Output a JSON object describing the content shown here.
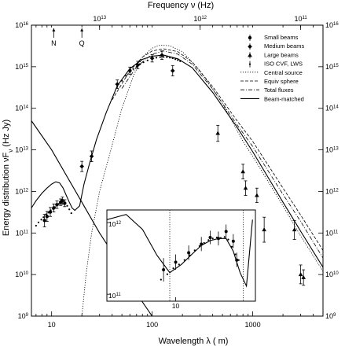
{
  "chart_data": {
    "type": "scatter",
    "xlabel": "Wavelength λ (  m)",
    "ylabel": "Energy distribution νF",
    "ylabel_sub": "ν",
    "ylabel_unit": " (Hz Jy)",
    "top_axis_label": "Frequency ν (Hz)",
    "x_scale": "log",
    "y_scale": "log",
    "xlim": [
      6.3,
      5000
    ],
    "ylim": [
      1000000000.0,
      1e+16
    ],
    "x_ticks": [
      {
        "value": 10,
        "label": "10"
      },
      {
        "value": 100,
        "label": "100"
      },
      {
        "value": 1000,
        "label": "1000"
      }
    ],
    "y_ticks": [
      {
        "value": 1000000000.0,
        "label": "10",
        "exp": "9"
      },
      {
        "value": 10000000000.0,
        "label": "10",
        "exp": "10"
      },
      {
        "value": 100000000000.0,
        "label": "10",
        "exp": "11"
      },
      {
        "value": 1000000000000.0,
        "label": "10",
        "exp": "12"
      },
      {
        "value": 10000000000000.0,
        "label": "10",
        "exp": "13"
      },
      {
        "value": 100000000000000.0,
        "label": "10",
        "exp": "14"
      },
      {
        "value": 1000000000000000.0,
        "label": "10",
        "exp": "15"
      },
      {
        "value": 1e+16,
        "label": "10",
        "exp": "16"
      }
    ],
    "top_ticks": [
      {
        "wavelength": 30,
        "label": "10",
        "exp": "13"
      },
      {
        "wavelength": 300,
        "label": "10",
        "exp": "12"
      },
      {
        "wavelength": 3000,
        "label": "10",
        "exp": "11"
      }
    ],
    "band_markers": [
      {
        "label": "N",
        "x": 10.5
      },
      {
        "label": "Q",
        "x": 20
      }
    ],
    "legend_position": "top-right",
    "legend": [
      {
        "label": "Small beams",
        "marker": "circle"
      },
      {
        "label": "Medium beams",
        "marker": "diamond"
      },
      {
        "label": "Large beams",
        "marker": "triangle"
      },
      {
        "label": "ISO CVF, LWS",
        "marker": "dot"
      },
      {
        "label": "Central source",
        "line": "dotted"
      },
      {
        "label": "Equiv sphere",
        "line": "dashed"
      },
      {
        "label": "Total fluxes",
        "line": "dashdot"
      },
      {
        "label": "Beam-matched",
        "line": "solid"
      }
    ],
    "series": [
      {
        "name": "Small beams",
        "marker": "circle",
        "points": [
          [
            8.5,
            200000000000.0,
            140000000000.0,
            280000000000.0
          ],
          [
            9.0,
            250000000000.0,
            190000000000.0,
            330000000000.0
          ],
          [
            9.7,
            320000000000.0,
            250000000000.0,
            410000000000.0
          ],
          [
            10.5,
            400000000000.0,
            320000000000.0,
            500000000000.0
          ],
          [
            11.3,
            480000000000.0,
            390000000000.0,
            590000000000.0
          ],
          [
            12.3,
            550000000000.0,
            460000000000.0,
            660000000000.0
          ],
          [
            12.8,
            600000000000.0,
            490000000000.0,
            730000000000.0
          ],
          [
            13.5,
            520000000000.0,
            430000000000.0,
            630000000000.0
          ]
        ]
      },
      {
        "name": "Medium beams",
        "marker": "diamond",
        "points": [
          [
            20,
            4000000000000.0,
            3000000000000.0,
            5300000000000.0
          ],
          [
            25,
            7000000000000.0,
            5200000000000.0,
            9400000000000.0
          ],
          [
            45,
            380000000000000.0,
            300000000000000.0,
            480000000000000.0
          ],
          [
            60,
            800000000000000.0,
            650000000000000.0,
            980000000000000.0
          ],
          [
            72,
            1100000000000000.0,
            900000000000000.0,
            1350000000000000.0
          ],
          [
            100,
            1600000000000000.0,
            1300000000000000.0,
            1950000000000000.0
          ],
          [
            125,
            1900000000000000.0,
            1500000000000000.0,
            2400000000000000.0
          ],
          [
            160,
            800000000000000.0,
            600000000000000.0,
            1070000000000000.0
          ]
        ]
      },
      {
        "name": "Large beams",
        "marker": "triangle",
        "points": [
          [
            450,
            25000000000000.0,
            16000000000000.0,
            39000000000000.0
          ],
          [
            800,
            3000000000000.0,
            2000000000000.0,
            4500000000000.0
          ],
          [
            850,
            1200000000000.0,
            800000000000.0,
            1800000000000.0
          ],
          [
            1100,
            800000000000.0,
            540000000000.0,
            1200000000000.0
          ],
          [
            1300,
            120000000000.0,
            60000000000.0,
            240000000000.0
          ],
          [
            2600,
            120000000000.0,
            70000000000.0,
            200000000000.0
          ],
          [
            3000,
            10000000000.0,
            6000000000.0,
            17000000000.0
          ],
          [
            3200,
            8500000000.0,
            5500000000.0,
            13000000000.0
          ]
        ]
      },
      {
        "name": "ISO CVF, LWS",
        "marker": "dot",
        "points": [
          [
            7.0,
            150000000000.0
          ],
          [
            7.4,
            180000000000.0
          ],
          [
            7.9,
            210000000000.0
          ],
          [
            8.3,
            240000000000.0
          ],
          [
            8.8,
            280000000000.0
          ],
          [
            9.3,
            310000000000.0
          ],
          [
            9.8,
            350000000000.0
          ],
          [
            10.3,
            380000000000.0
          ],
          [
            10.8,
            420000000000.0
          ],
          [
            11.3,
            460000000000.0
          ],
          [
            11.8,
            500000000000.0
          ],
          [
            12.4,
            560000000000.0
          ],
          [
            13.0,
            590000000000.0
          ],
          [
            13.7,
            530000000000.0
          ],
          [
            14.3,
            450000000000.0
          ],
          [
            15.0,
            370000000000.0
          ],
          [
            15.7,
            300000000000.0
          ],
          [
            45,
            330000000000000.0
          ],
          [
            50,
            460000000000000.0
          ],
          [
            55,
            600000000000000.0
          ],
          [
            60,
            740000000000000.0
          ],
          [
            65,
            880000000000000.0
          ],
          [
            70,
            1000000000000000.0
          ],
          [
            76,
            1150000000000000.0
          ],
          [
            82,
            1280000000000000.0
          ],
          [
            90,
            1420000000000000.0
          ],
          [
            100,
            1550000000000000.0
          ],
          [
            110,
            1650000000000000.0
          ],
          [
            120,
            1700000000000000.0
          ],
          [
            130,
            1720000000000000.0
          ],
          [
            140,
            1700000000000000.0
          ],
          [
            150,
            1660000000000000.0
          ],
          [
            160,
            1600000000000000.0
          ],
          [
            170,
            1520000000000000.0
          ],
          [
            180,
            1440000000000000.0
          ],
          [
            190,
            1360000000000000.0
          ]
        ]
      }
    ],
    "curves": [
      {
        "name": "Central source",
        "style": "dotted",
        "points": [
          [
            20,
            1000000000.0
          ],
          [
            22,
            10000000000.0
          ],
          [
            25,
            100000000000.0
          ],
          [
            30,
            1000000000000.0
          ],
          [
            40,
            13000000000000.0
          ],
          [
            50,
            100000000000000.0
          ],
          [
            65,
            600000000000000.0
          ],
          [
            80,
            1700000000000000.0
          ],
          [
            100,
            2800000000000000.0
          ],
          [
            120,
            3300000000000000.0
          ],
          [
            150,
            3200000000000000.0
          ],
          [
            200,
            2300000000000000.0
          ],
          [
            300,
            800000000000000.0
          ],
          [
            500,
            130000000000000.0
          ],
          [
            800,
            16000000000000.0
          ],
          [
            1000,
            7000000000000.0
          ],
          [
            2000,
            450000000000.0
          ],
          [
            3000,
            85000000000.0
          ],
          [
            5000,
            12000000000.0
          ]
        ]
      },
      {
        "name": "Equiv sphere",
        "style": "dashed",
        "points": [
          [
            40,
            160000000000000.0
          ],
          [
            60,
            800000000000000.0
          ],
          [
            80,
            1700000000000000.0
          ],
          [
            100,
            2400000000000000.0
          ],
          [
            130,
            2700000000000000.0
          ],
          [
            180,
            2300000000000000.0
          ],
          [
            250,
            1300000000000000.0
          ],
          [
            400,
            330000000000000.0
          ],
          [
            700,
            50000000000000.0
          ],
          [
            1000,
            16000000000000.0
          ],
          [
            2000,
            1200000000000.0
          ],
          [
            3000,
            270000000000.0
          ],
          [
            5000,
            38000000000.0
          ]
        ]
      },
      {
        "name": "Total fluxes",
        "style": "dashdot",
        "points": [
          [
            50,
            300000000000000.0
          ],
          [
            70,
            1000000000000000.0
          ],
          [
            100,
            2000000000000000.0
          ],
          [
            130,
            2400000000000000.0
          ],
          [
            180,
            2000000000000000.0
          ],
          [
            250,
            1150000000000000.0
          ],
          [
            400,
            290000000000000.0
          ],
          [
            700,
            40000000000000.0
          ],
          [
            1000,
            12000000000000.0
          ],
          [
            2000,
            850000000000.0
          ],
          [
            3000,
            190000000000.0
          ],
          [
            5000,
            25000000000.0
          ]
        ]
      },
      {
        "name": "Beam-matched",
        "style": "solid",
        "points": [
          [
            6.3,
            400000000000.0
          ],
          [
            7.0,
            600000000000.0
          ],
          [
            8.0,
            900000000000.0
          ],
          [
            9.0,
            1200000000000.0
          ],
          [
            10.0,
            1500000000000.0
          ],
          [
            11.0,
            1700000000000.0
          ],
          [
            12.0,
            1600000000000.0
          ],
          [
            13.0,
            1200000000000.0
          ],
          [
            14.0,
            800000000000.0
          ],
          [
            15.0,
            550000000000.0
          ],
          [
            16.0,
            400000000000.0
          ],
          [
            17.0,
            350000000000.0
          ],
          [
            19.0,
            450000000000.0
          ],
          [
            21.0,
            1500000000000.0
          ],
          [
            24.0,
            5000000000000.0
          ],
          [
            28.0,
            18000000000000.0
          ],
          [
            35.0,
            80000000000000.0
          ],
          [
            45.0,
            350000000000000.0
          ],
          [
            60.0,
            900000000000000.0
          ],
          [
            80.0,
            1500000000000000.0
          ],
          [
            100,
            1800000000000000.0
          ],
          [
            130,
            1900000000000000.0
          ],
          [
            180,
            1550000000000000.0
          ],
          [
            250,
            950000000000000.0
          ],
          [
            400,
            240000000000000.0
          ],
          [
            700,
            35000000000000.0
          ],
          [
            1000,
            9000000000000.0
          ],
          [
            2000,
            550000000000.0
          ],
          [
            3000,
            110000000000.0
          ],
          [
            5000,
            15000000000.0
          ]
        ]
      },
      {
        "name": "Beam-matched (lower)",
        "style": "solid",
        "points": [
          [
            6.3,
            50000000000000.0
          ],
          [
            10,
            10000000000000.0
          ],
          [
            20,
            550000000000.0
          ],
          [
            30,
            100000000000.0
          ],
          [
            50,
            15000000000.0
          ],
          [
            70,
            3500000000.0
          ],
          [
            100,
            1000000000.0
          ]
        ]
      }
    ],
    "inset": {
      "xlim": [
        5.5,
        20
      ],
      "ylim": [
        80000000000.0,
        1500000000000.0
      ],
      "x_ticks": [
        {
          "value": 10,
          "label": "10"
        }
      ],
      "y_ticks": [
        {
          "value": 100000000000.0,
          "label": "10",
          "exp": "11"
        },
        {
          "value": 1000000000000.0,
          "label": "10",
          "exp": "12"
        }
      ],
      "vlines": [
        9.5,
        18
      ],
      "points": [
        [
          9.0,
          220000000000.0,
          150000000000.0,
          320000000000.0
        ],
        [
          10.0,
          280000000000.0,
          220000000000.0,
          360000000000.0
        ],
        [
          11.2,
          380000000000.0,
          300000000000.0,
          480000000000.0
        ],
        [
          12.5,
          500000000000.0,
          400000000000.0,
          630000000000.0
        ],
        [
          13.5,
          620000000000.0,
          500000000000.0,
          770000000000.0
        ],
        [
          14.5,
          600000000000.0,
          480000000000.0,
          750000000000.0
        ],
        [
          15.5,
          750000000000.0,
          600000000000.0,
          940000000000.0
        ],
        [
          16.5,
          550000000000.0,
          440000000000.0,
          690000000000.0
        ],
        [
          17.0,
          300000000000.0,
          240000000000.0,
          380000000000.0
        ]
      ],
      "dots": [
        [
          8.8,
          160000000000.0
        ],
        [
          9.3,
          190000000000.0
        ],
        [
          9.8,
          230000000000.0
        ],
        [
          10.3,
          260000000000.0
        ],
        [
          10.8,
          300000000000.0
        ],
        [
          11.3,
          350000000000.0
        ],
        [
          11.8,
          410000000000.0
        ],
        [
          12.3,
          470000000000.0
        ],
        [
          12.8,
          520000000000.0
        ],
        [
          13.3,
          570000000000.0
        ],
        [
          13.8,
          600000000000.0
        ],
        [
          14.3,
          620000000000.0
        ],
        [
          14.8,
          610000000000.0
        ],
        [
          15.3,
          630000000000.0
        ],
        [
          15.8,
          580000000000.0
        ],
        [
          16.3,
          460000000000.0
        ],
        [
          16.8,
          360000000000.0
        ],
        [
          17.3,
          300000000000.0
        ]
      ],
      "curve": [
        [
          5.5,
          1100000000000.0
        ],
        [
          6.5,
          1300000000000.0
        ],
        [
          7.5,
          800000000000.0
        ],
        [
          8.5,
          350000000000.0
        ],
        [
          9.5,
          200000000000.0
        ],
        [
          10.5,
          260000000000.0
        ],
        [
          11.5,
          360000000000.0
        ],
        [
          12.5,
          480000000000.0
        ],
        [
          13.5,
          560000000000.0
        ],
        [
          14.5,
          600000000000.0
        ],
        [
          15.5,
          600000000000.0
        ],
        [
          16.5,
          400000000000.0
        ],
        [
          17.5,
          200000000000.0
        ],
        [
          18.5,
          130000000000.0
        ],
        [
          19.5,
          1100000000000.0
        ]
      ]
    }
  }
}
